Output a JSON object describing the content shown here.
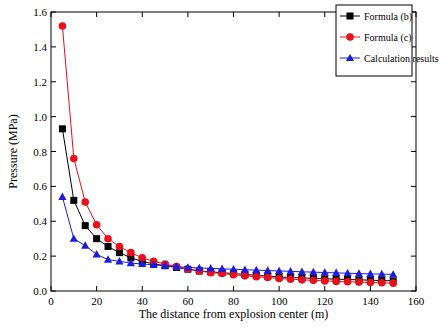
{
  "chart_data": {
    "type": "line",
    "x_label": "The distance from explosion center (m)",
    "y_label": "Pressure (MPa)",
    "x": [
      5,
      10,
      15,
      20,
      25,
      30,
      35,
      40,
      45,
      50,
      55,
      60,
      65,
      70,
      75,
      80,
      85,
      90,
      95,
      100,
      105,
      110,
      115,
      120,
      125,
      130,
      135,
      140,
      145,
      150
    ],
    "series": [
      {
        "name": "Formula (b)",
        "color": "#000000",
        "marker": "square",
        "line_style": "solid",
        "values": [
          0.93,
          0.52,
          0.375,
          0.3,
          0.255,
          0.22,
          0.19,
          0.17,
          0.155,
          0.145,
          0.135,
          0.125,
          0.115,
          0.11,
          0.105,
          0.1,
          0.095,
          0.09,
          0.085,
          0.08,
          0.078,
          0.075,
          0.072,
          0.07,
          0.068,
          0.066,
          0.064,
          0.062,
          0.06,
          0.058
        ]
      },
      {
        "name": "Formula (c)",
        "color": "#e8101c",
        "marker": "circle",
        "line_style": "solid",
        "values": [
          1.52,
          0.76,
          0.51,
          0.38,
          0.3,
          0.255,
          0.22,
          0.19,
          0.17,
          0.155,
          0.14,
          0.125,
          0.115,
          0.105,
          0.1,
          0.093,
          0.087,
          0.082,
          0.077,
          0.072,
          0.068,
          0.064,
          0.061,
          0.058,
          0.055,
          0.053,
          0.051,
          0.049,
          0.047,
          0.045
        ]
      },
      {
        "name": "Calculation results",
        "color": "#1c1ce0",
        "marker": "triangle",
        "line_style": "solid",
        "values": [
          0.54,
          0.3,
          0.26,
          0.21,
          0.18,
          0.17,
          0.16,
          0.155,
          0.15,
          0.145,
          0.14,
          0.135,
          0.132,
          0.13,
          0.127,
          0.125,
          0.122,
          0.12,
          0.117,
          0.115,
          0.113,
          0.11,
          0.108,
          0.106,
          0.104,
          0.102,
          0.1,
          0.098,
          0.097,
          0.095
        ]
      }
    ],
    "xlim": [
      0,
      160
    ],
    "xticks": [
      0,
      20,
      40,
      60,
      80,
      100,
      120,
      140,
      160
    ],
    "ylim": [
      0,
      1.6
    ],
    "yticks": [
      {
        "value": 0,
        "label": "0.0"
      },
      {
        "value": 0.2,
        "label": "0.2"
      },
      {
        "value": 0.4,
        "label": "0.4"
      },
      {
        "value": 0.6,
        "label": "0.6"
      },
      {
        "value": 0.8,
        "label": "0.8"
      },
      {
        "value": 1.0,
        "label": "1.0"
      },
      {
        "value": 1.2,
        "label": "1.2"
      },
      {
        "value": 1.4,
        "label": "1.4"
      },
      {
        "value": 1.6,
        "label": "1.6"
      }
    ],
    "grid": false,
    "legend": "upper right"
  }
}
